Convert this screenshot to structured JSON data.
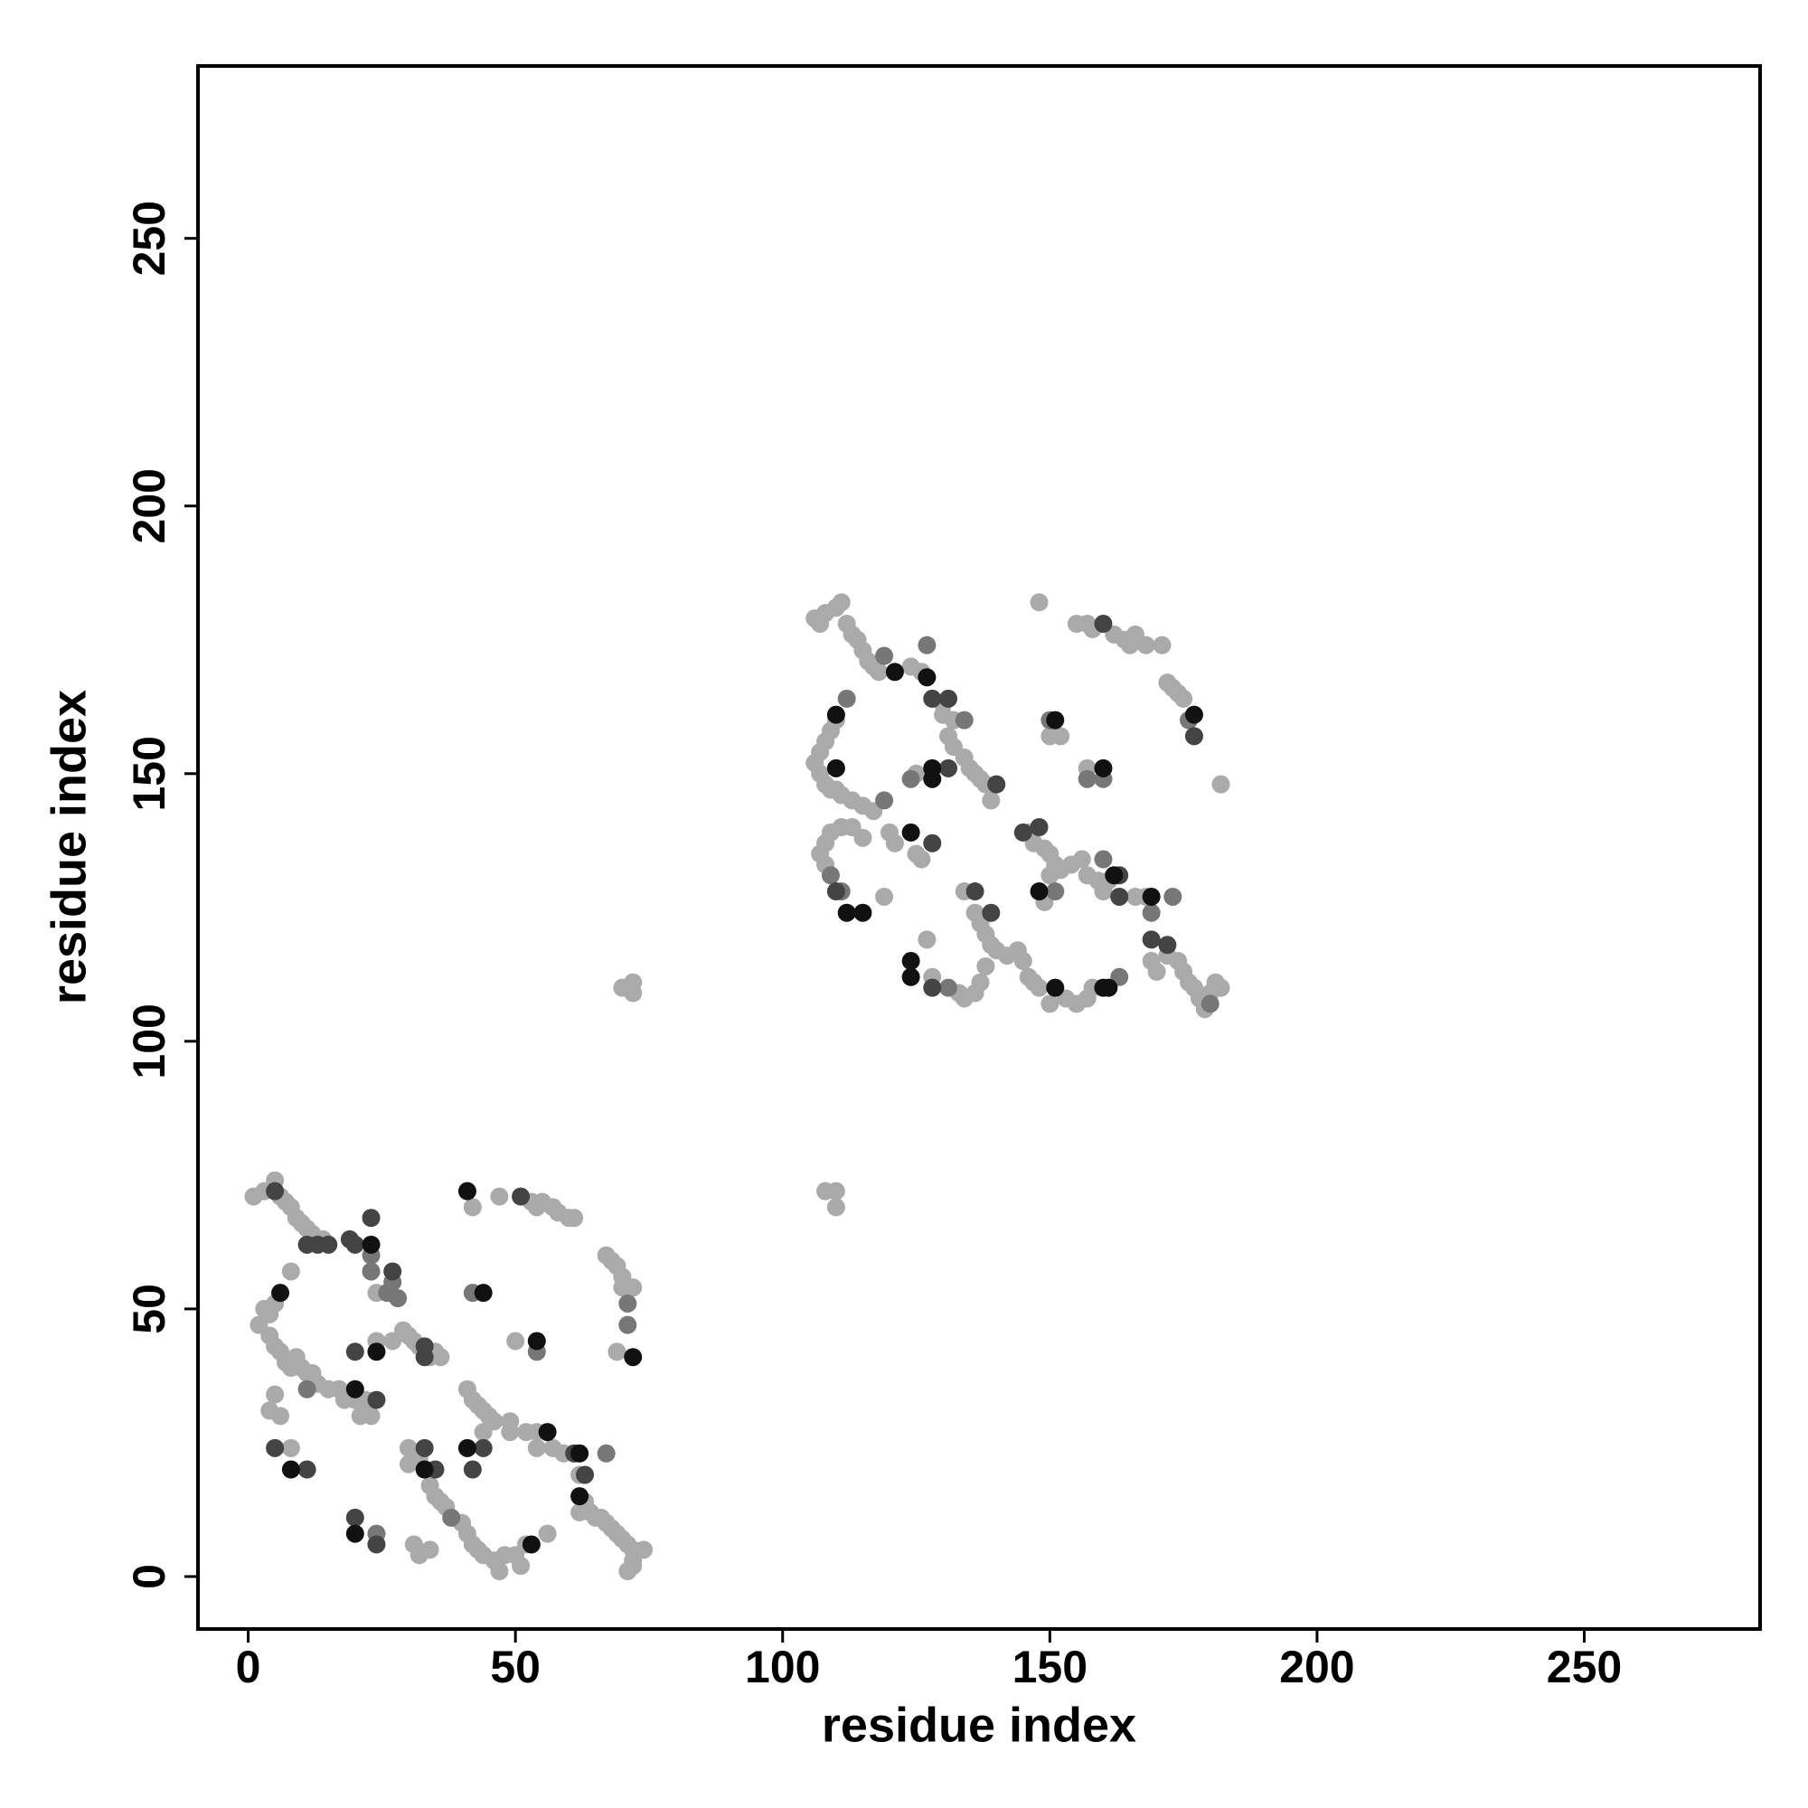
{
  "chart_data": {
    "type": "scatter",
    "xlabel": "residue index",
    "ylabel": "residue index",
    "xlim": [
      -9.4,
      282.9
    ],
    "ylim": [
      -9.8,
      282.2
    ],
    "xticks": [
      0,
      50,
      100,
      150,
      200,
      250
    ],
    "yticks": [
      0,
      50,
      100,
      150,
      200,
      250
    ],
    "series": [
      {
        "color": "#aaaaaa",
        "x": [
          1,
          3,
          5,
          6,
          7,
          8,
          9,
          10,
          11,
          12,
          14,
          24,
          2,
          3,
          4,
          4,
          5,
          5,
          6,
          7,
          8,
          9,
          10,
          11,
          12,
          13,
          15,
          17,
          18,
          20,
          21,
          23,
          22,
          8,
          4,
          5,
          6,
          8,
          24,
          27,
          29,
          30,
          31,
          32,
          34,
          35,
          36,
          30,
          30,
          32,
          34,
          35,
          36,
          37,
          40,
          41,
          42,
          43,
          44,
          46,
          48,
          50,
          51,
          47,
          52,
          56,
          31,
          32,
          34,
          41,
          42,
          43,
          44,
          45,
          46,
          49,
          49,
          52,
          54,
          57,
          59,
          62,
          63,
          64,
          65,
          66,
          67,
          68,
          69,
          70,
          71,
          72,
          74,
          72,
          71,
          72,
          62,
          44,
          54,
          50,
          42,
          47,
          53,
          54,
          55,
          57,
          58,
          60,
          61,
          67,
          68,
          69,
          70,
          70,
          72,
          69,
          106,
          107,
          108,
          110,
          111,
          112,
          113,
          114,
          115,
          116,
          117,
          118,
          124,
          126,
          130,
          130,
          132,
          131,
          132,
          134,
          135,
          136,
          137,
          138,
          139,
          125,
          110,
          109,
          108,
          107,
          106,
          107,
          108,
          109,
          110,
          111,
          113,
          115,
          117,
          109,
          108,
          107,
          108,
          111,
          113,
          115,
          119,
          120,
          121,
          125,
          126,
          127,
          128,
          133,
          134,
          136,
          137,
          138,
          140,
          142,
          144,
          145,
          146,
          147,
          148,
          150,
          153,
          155,
          157,
          158,
          134,
          136,
          137,
          138,
          139,
          146,
          147,
          149,
          150,
          151,
          152,
          154,
          156,
          157,
          159,
          161,
          166,
          168,
          169,
          170,
          172,
          174,
          175,
          176,
          177,
          178,
          179,
          180,
          181,
          182,
          149,
          150,
          160,
          148,
          155,
          157,
          158,
          162,
          164,
          165,
          166,
          168,
          171,
          172,
          173,
          174,
          175,
          182,
          150,
          152,
          157,
          70,
          72,
          72,
          108,
          110,
          110
        ],
        "y": [
          71,
          72,
          74,
          71,
          70,
          69,
          67,
          66,
          65,
          64,
          63,
          53,
          47,
          50,
          49,
          45,
          43,
          51,
          42,
          40,
          39,
          41,
          39,
          38,
          38,
          36,
          35,
          35,
          33,
          33,
          30,
          30,
          33,
          57,
          31,
          34,
          30,
          24,
          44,
          44,
          46,
          45,
          44,
          43,
          41,
          42,
          41,
          24,
          21,
          22,
          17,
          15,
          14,
          13,
          10,
          8,
          6,
          5,
          4,
          3,
          4,
          4,
          2,
          1,
          6,
          8,
          6,
          4,
          5,
          35,
          33,
          32,
          31,
          30,
          29,
          29,
          27,
          27,
          27,
          24,
          23,
          19,
          14,
          12,
          11,
          11,
          10,
          9,
          8,
          7,
          6,
          5,
          5,
          3,
          1,
          2,
          12,
          27,
          24,
          44,
          69,
          71,
          70,
          69,
          70,
          69,
          68,
          67,
          67,
          60,
          59,
          58,
          56,
          54,
          54,
          42,
          179,
          178,
          180,
          181,
          182,
          178,
          176,
          175,
          173,
          171,
          170,
          169,
          170,
          169,
          163,
          161,
          160,
          157,
          155,
          153,
          151,
          150,
          149,
          148,
          145,
          150,
          160,
          158,
          156,
          154,
          152,
          150,
          148,
          147,
          147,
          146,
          145,
          144,
          143,
          139,
          137,
          135,
          133,
          140,
          140,
          138,
          127,
          139,
          137,
          135,
          134,
          119,
          112,
          109,
          108,
          109,
          111,
          114,
          117,
          116,
          117,
          115,
          112,
          111,
          110,
          107,
          108,
          107,
          108,
          110,
          128,
          124,
          122,
          120,
          118,
          139,
          137,
          136,
          135,
          133,
          132,
          133,
          134,
          131,
          130,
          130,
          127,
          127,
          115,
          113,
          116,
          115,
          113,
          111,
          110,
          108,
          106,
          109,
          111,
          110,
          126,
          131,
          128,
          182,
          178,
          178,
          177,
          176,
          175,
          174,
          176,
          174,
          174,
          167,
          166,
          165,
          164,
          148,
          157,
          157,
          151,
          110,
          111,
          109,
          72,
          72,
          69
        ]
      },
      {
        "color": "#777777",
        "x": [
          23,
          23,
          26,
          27,
          28,
          11,
          24,
          38,
          54,
          42,
          67,
          71,
          71,
          119,
          127,
          134,
          124,
          119,
          112,
          109,
          111,
          131,
          160,
          169,
          180,
          173,
          151,
          163,
          176,
          157,
          160,
          150
        ],
        "y": [
          60,
          57,
          53,
          55,
          52,
          35,
          8,
          11,
          42,
          53,
          23,
          51,
          47,
          172,
          174,
          160,
          149,
          145,
          164,
          131,
          128,
          110,
          134,
          124,
          107,
          127,
          128,
          112,
          160,
          149,
          149,
          160
        ]
      },
      {
        "color": "#444444",
        "x": [
          5,
          11,
          13,
          15,
          19,
          20,
          23,
          27,
          24,
          5,
          11,
          20,
          33,
          33,
          20,
          24,
          33,
          35,
          61,
          63,
          44,
          42,
          51,
          128,
          131,
          140,
          131,
          110,
          128,
          128,
          136,
          139,
          145,
          148,
          163,
          163,
          169,
          172,
          160,
          177
        ],
        "y": [
          72,
          62,
          62,
          62,
          63,
          62,
          67,
          57,
          33,
          24,
          20,
          42,
          43,
          41,
          11,
          6,
          24,
          20,
          23,
          19,
          24,
          20,
          71,
          164,
          164,
          148,
          151,
          128,
          137,
          110,
          128,
          124,
          139,
          140,
          131,
          127,
          119,
          118,
          178,
          157
        ]
      },
      {
        "color": "#111111",
        "x": [
          23,
          6,
          20,
          8,
          33,
          24,
          20,
          53,
          56,
          62,
          62,
          41,
          54,
          44,
          41,
          72,
          121,
          127,
          128,
          128,
          110,
          110,
          112,
          115,
          124,
          124,
          124,
          151,
          160,
          161,
          162,
          169,
          148,
          177,
          160,
          151
        ],
        "y": [
          62,
          53,
          35,
          20,
          20,
          42,
          8,
          6,
          27,
          23,
          15,
          24,
          44,
          53,
          72,
          41,
          169,
          168,
          151,
          149,
          161,
          151,
          124,
          124,
          139,
          115,
          112,
          110,
          110,
          110,
          131,
          127,
          128,
          161,
          151,
          160
        ]
      }
    ]
  }
}
